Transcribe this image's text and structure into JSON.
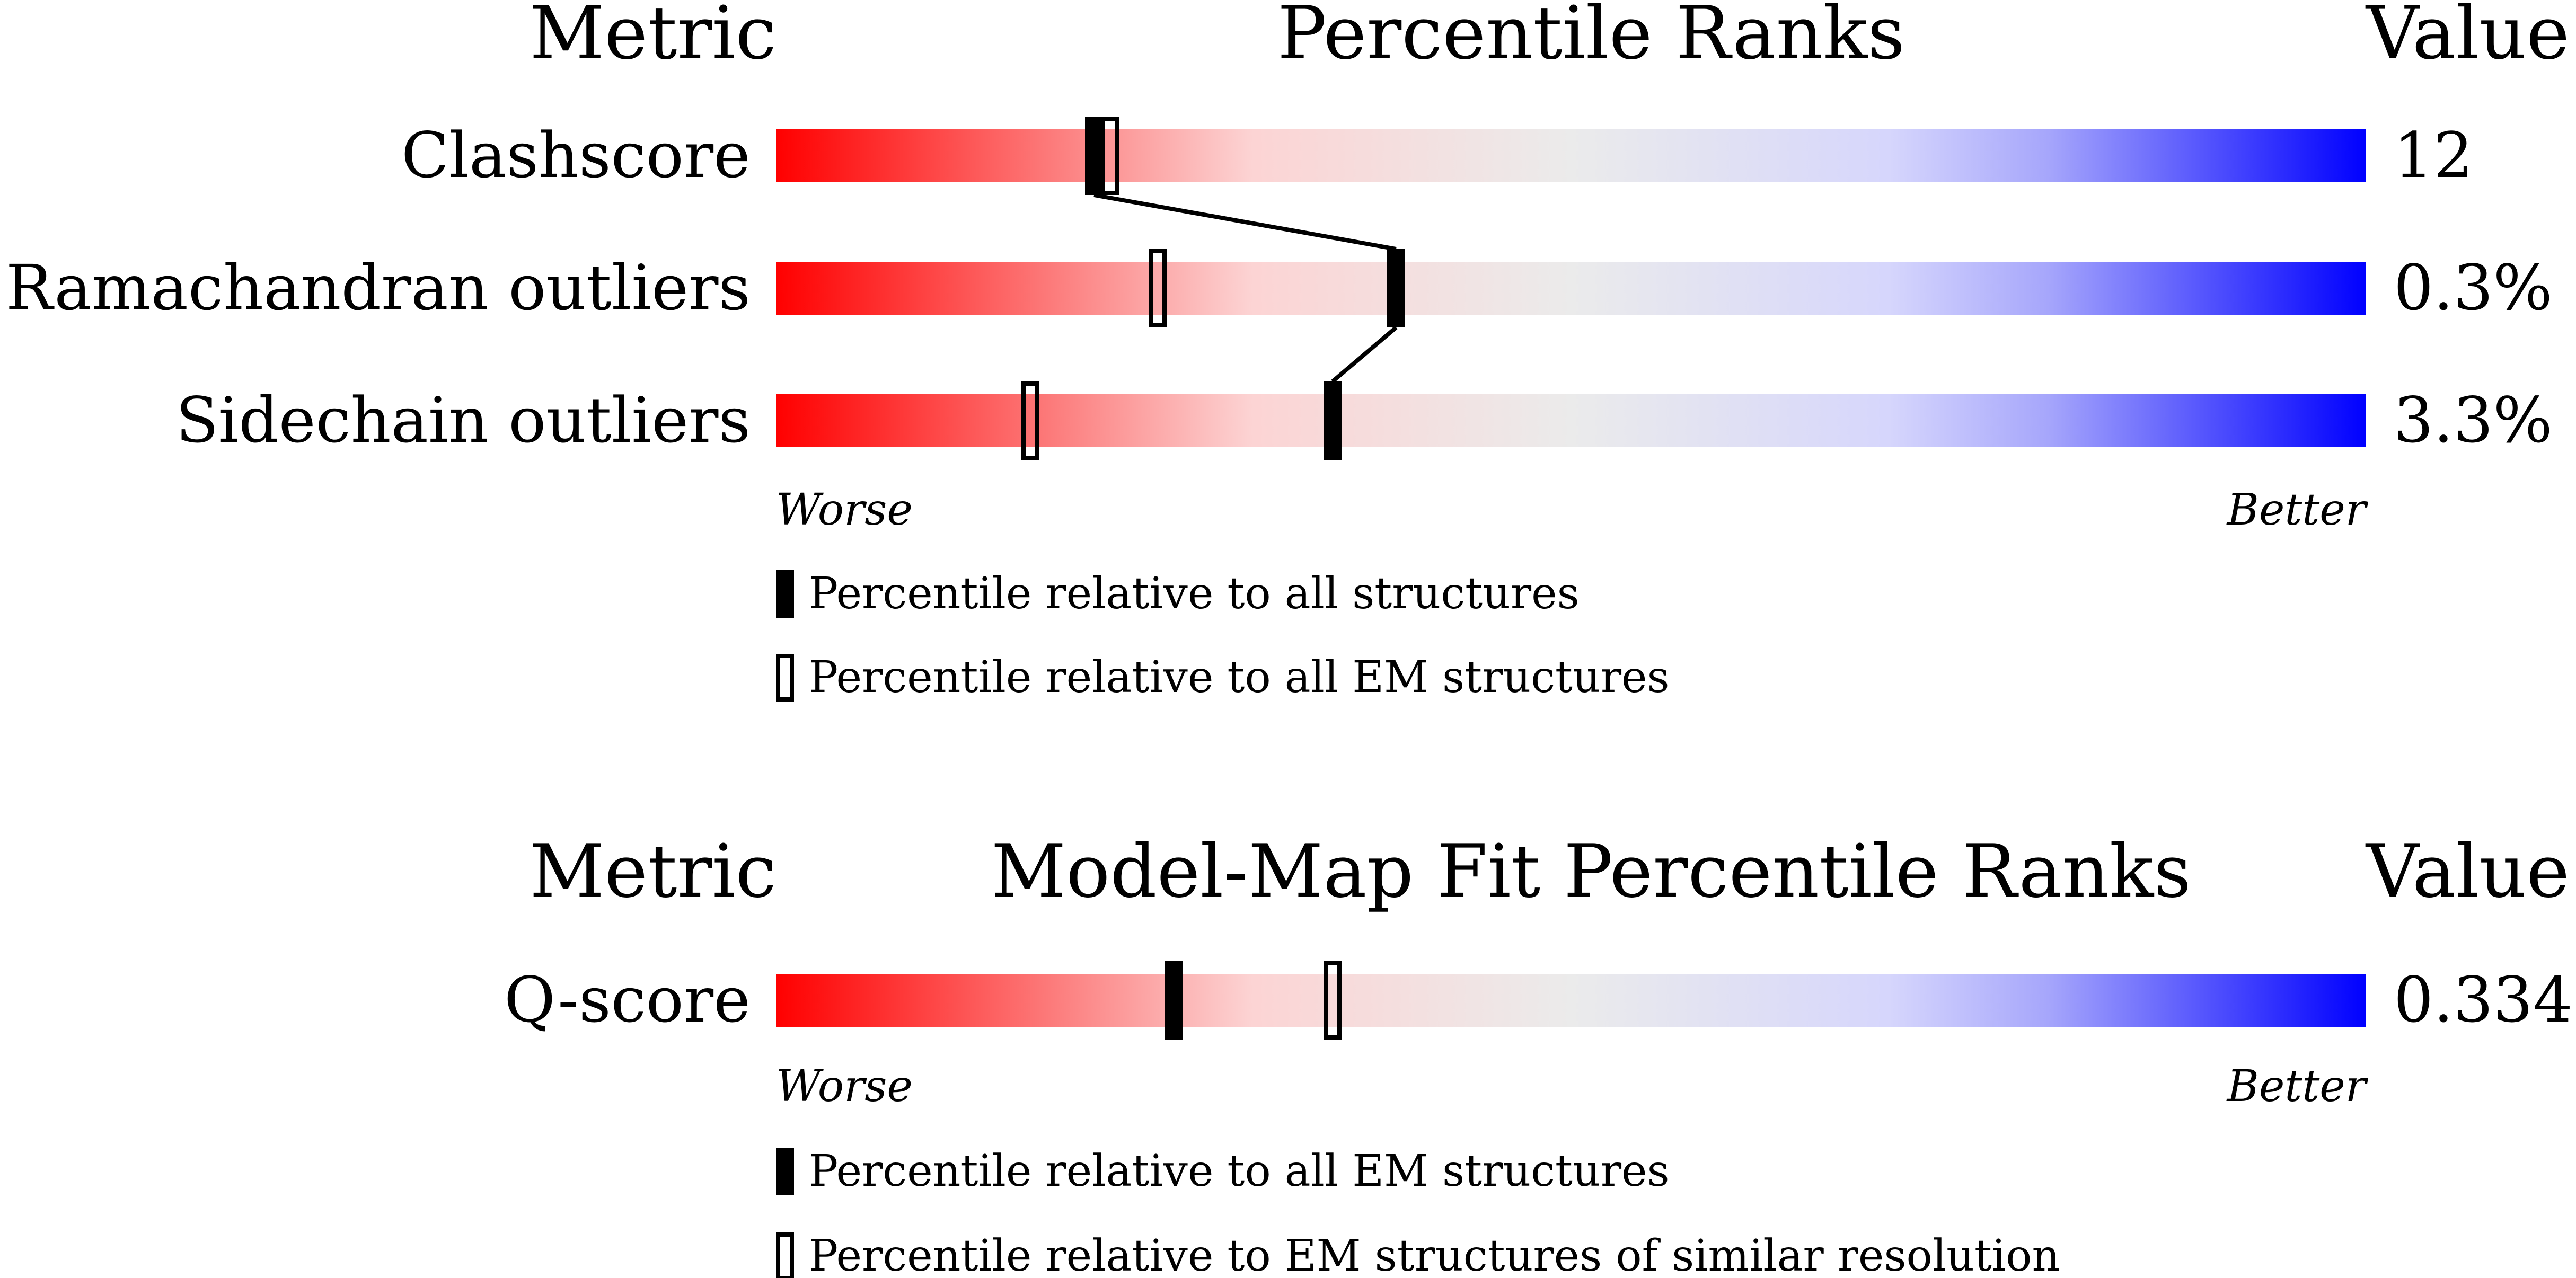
{
  "chart_data": [
    {
      "type": "bar",
      "headers": {
        "metric": "Metric",
        "title": "Percentile Ranks",
        "value": "Value"
      },
      "scale": {
        "worse": "Worse",
        "better": "Better",
        "range": [
          0,
          100
        ]
      },
      "rows": [
        {
          "label": "Clashscore",
          "value": "12",
          "all": 20,
          "em": 21
        },
        {
          "label": "Ramachandran outliers",
          "value": "0.3%",
          "all": 39,
          "em": 24
        },
        {
          "label": "Sidechain outliers",
          "value": "3.3%",
          "all": 35,
          "em": 16
        }
      ],
      "connect_markers": "all",
      "legend": {
        "filled": "Percentile relative to all structures",
        "hollow": "Percentile relative to all EM structures"
      }
    },
    {
      "type": "bar",
      "headers": {
        "metric": "Metric",
        "title": "Model-Map Fit Percentile Ranks",
        "value": "Value"
      },
      "scale": {
        "worse": "Worse",
        "better": "Better",
        "range": [
          0,
          100
        ]
      },
      "rows": [
        {
          "label": "Q-score",
          "value": "0.334",
          "all": 25,
          "em": 35
        }
      ],
      "connect_markers": "none",
      "legend": {
        "filled": "Percentile relative to all EM structures",
        "hollow": "Percentile relative to EM structures of similar resolution"
      }
    }
  ],
  "colors": {
    "worse": "#ff0000",
    "mid": "#ebebeb",
    "better": "#0000ff",
    "marker": "#000000"
  }
}
